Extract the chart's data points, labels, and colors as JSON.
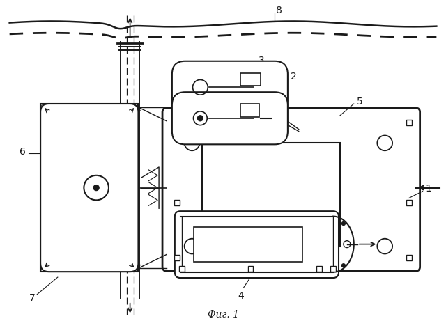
{
  "bg_color": "#ffffff",
  "line_color": "#1a1a1a",
  "fig_width": 6.4,
  "fig_height": 4.71,
  "title": "Фиг. 1"
}
